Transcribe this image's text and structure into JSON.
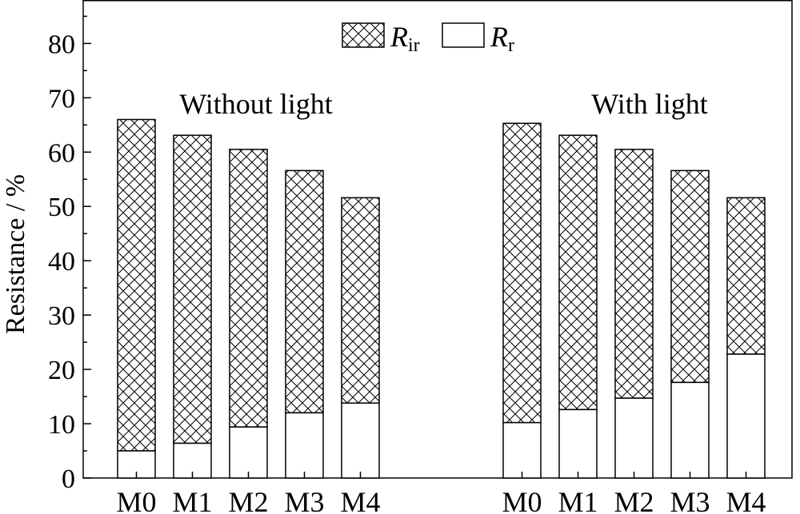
{
  "chart_data": {
    "type": "bar",
    "stacked": true,
    "ylabel": "Resistance / %",
    "ylim": [
      0,
      88
    ],
    "yticks": [
      0,
      10,
      20,
      30,
      40,
      50,
      60,
      70,
      80
    ],
    "legend": {
      "position": "top-center",
      "items": [
        {
          "base": "R",
          "sub": "ir",
          "pattern": "crosshatch"
        },
        {
          "base": "R",
          "sub": "r",
          "pattern": "none"
        }
      ]
    },
    "groups": [
      {
        "label": "Without light",
        "categories": [
          "M0",
          "M1",
          "M2",
          "M3",
          "M4"
        ],
        "R_r_values": [
          5.0,
          6.4,
          9.4,
          12.0,
          13.8
        ],
        "totals": [
          66.0,
          63.1,
          60.5,
          56.6,
          51.6
        ]
      },
      {
        "label": "With light",
        "categories": [
          "M0",
          "M1",
          "M2",
          "M3",
          "M4"
        ],
        "R_r_values": [
          10.2,
          12.6,
          14.7,
          17.6,
          22.8
        ],
        "totals": [
          65.3,
          63.1,
          60.5,
          56.6,
          51.6
        ]
      }
    ],
    "grid": false
  }
}
